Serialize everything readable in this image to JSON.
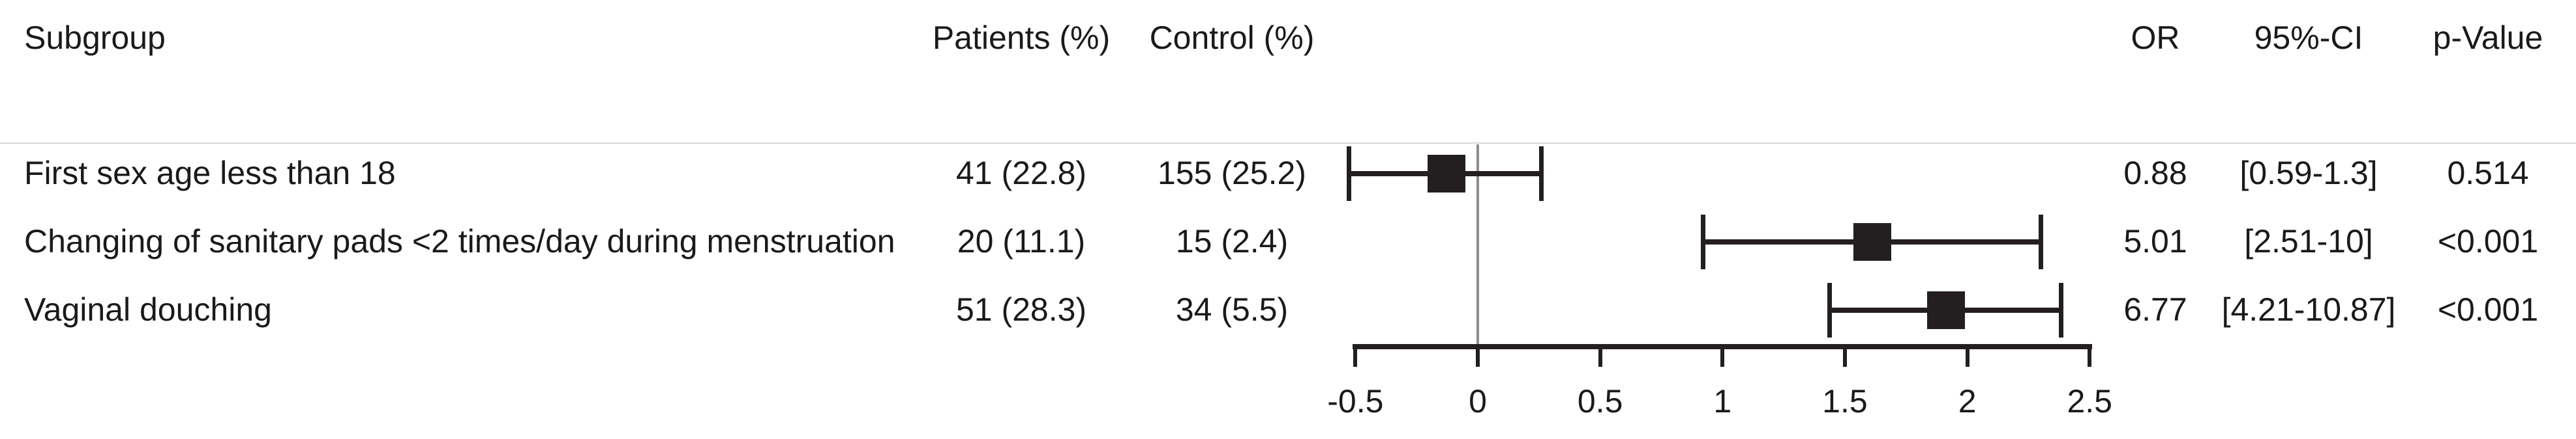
{
  "table": {
    "headers": {
      "subgroup": "Subgroup",
      "patients": "Patients (%)",
      "control": "Control (%)",
      "or": "OR",
      "ci": "95%-CI",
      "pvalue": "p-Value"
    },
    "rows": [
      {
        "subgroup": "First sex age less than 18",
        "patients": "41 (22.8)",
        "control": "155 (25.2)",
        "or": "0.88",
        "ci": "[0.59-1.3]",
        "pvalue": "0.514"
      },
      {
        "subgroup": "Changing of sanitary pads <2 times/day during menstruation",
        "patients": "20 (11.1)",
        "control": "15 (2.4)",
        "or": "5.01",
        "ci": "[2.51-10]",
        "pvalue": "<0.001"
      },
      {
        "subgroup": "Vaginal douching",
        "patients": "51 (28.3)",
        "control": "34 (5.5)",
        "or": "6.77",
        "ci": "[4.21-10.87]",
        "pvalue": "<0.001"
      }
    ]
  },
  "chart_data": {
    "type": "forest",
    "title": "",
    "xlabel": "",
    "x_scale": "natural log of odds ratio",
    "x_axis": {
      "tick_values": [
        -0.5,
        0,
        0.5,
        1,
        1.5,
        2,
        2.5
      ],
      "tick_labels": [
        "-0.5",
        "0",
        "0.5",
        "1",
        "1.5",
        "2",
        "2.5"
      ],
      "range": [
        -0.5,
        2.5
      ],
      "reference_line_at": 0,
      "grid": "off",
      "legend": "none"
    },
    "series": [
      {
        "subgroup": "First sex age less than 18",
        "or": 0.88,
        "ci_low": 0.59,
        "ci_high": 1.3,
        "p_value": "0.514"
      },
      {
        "subgroup": "Changing of sanitary pads <2 times/day during menstruation",
        "or": 5.01,
        "ci_low": 2.51,
        "ci_high": 10,
        "p_value": "<0.001"
      },
      {
        "subgroup": "Vaginal douching",
        "or": 6.77,
        "ci_low": 4.21,
        "ci_high": 10.87,
        "p_value": "<0.001"
      }
    ]
  },
  "colors": {
    "text": "#1a1a1a",
    "marker": "#231f20",
    "reference_line": "#8c8c8c",
    "separator": "#d9d9d9"
  }
}
